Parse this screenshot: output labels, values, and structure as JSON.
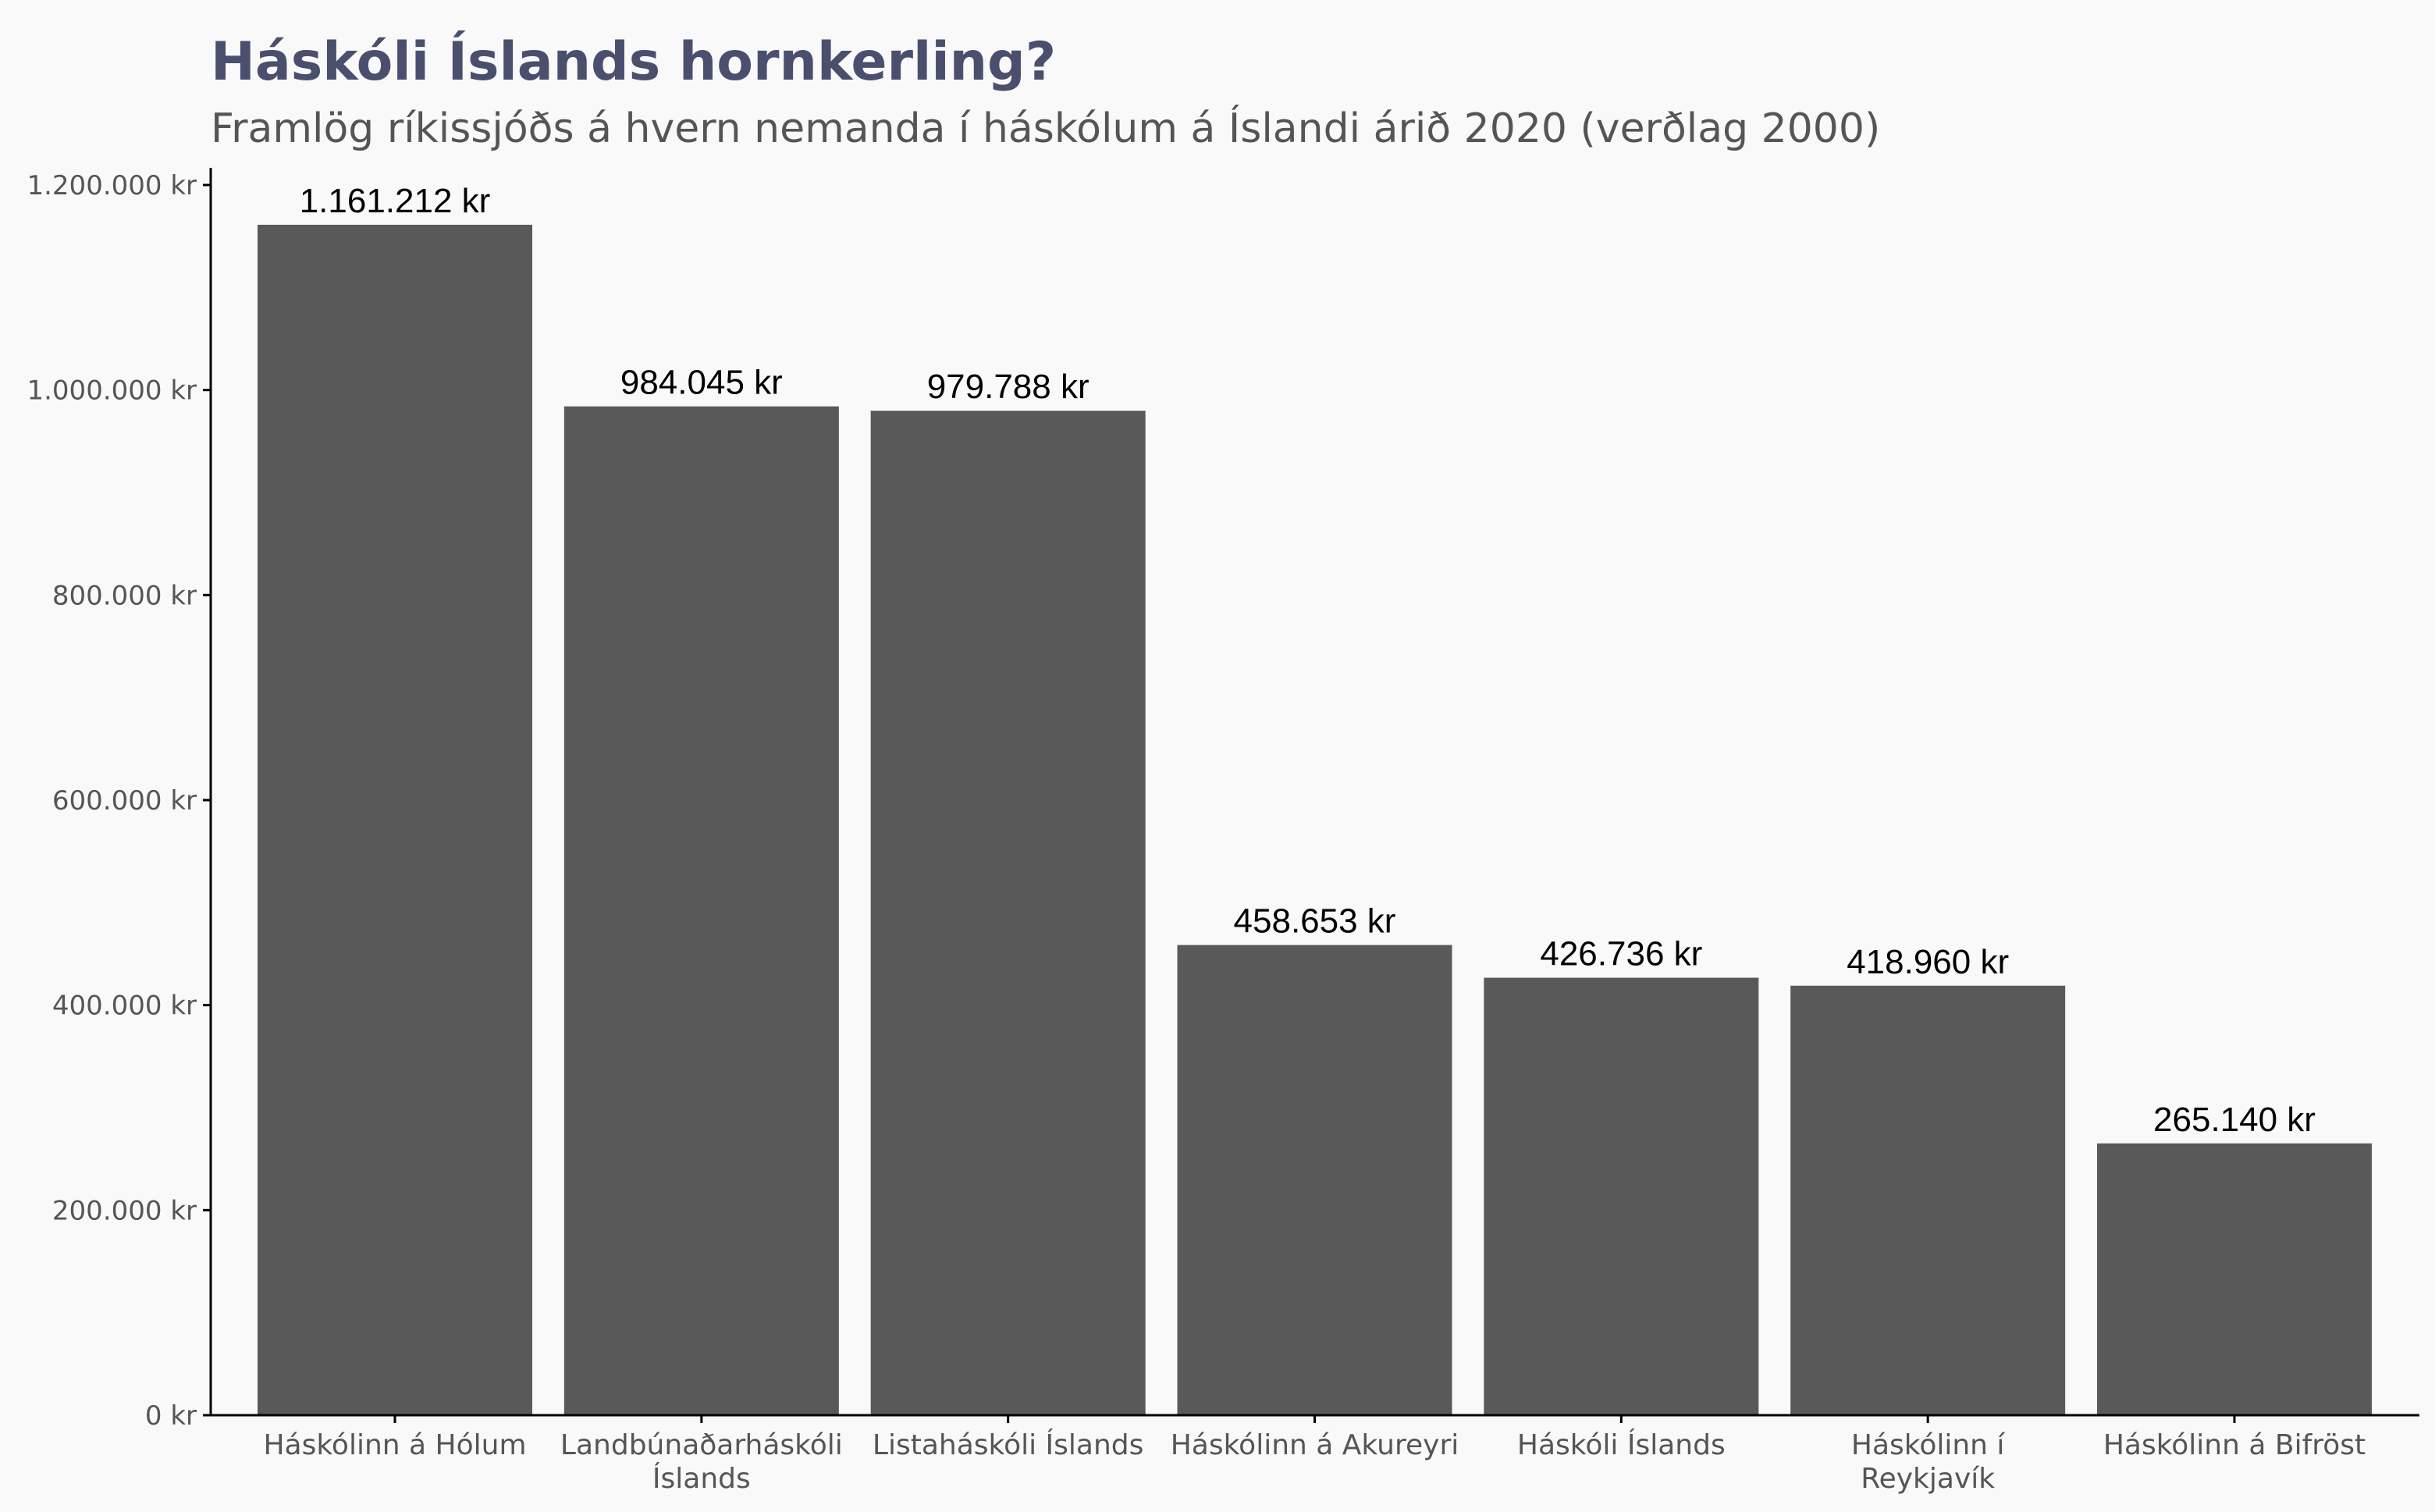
{
  "chart_data": {
    "type": "bar",
    "title": "Háskóli Íslands hornkerling?",
    "subtitle": "Framlög ríkissjóðs á hvern nemanda í háskólum á Íslandi árið 2020 (verðlag 2000)",
    "xlabel": "",
    "ylabel": "",
    "categories": [
      "Háskólinn á Hólum",
      "Landbúnaðarháskóli Íslands",
      "Listaháskóli Íslands",
      "Háskólinn á Akureyri",
      "Háskóli Íslands",
      "Háskólinn í Reykjavík",
      "Háskólinn á Bifröst"
    ],
    "category_lines": [
      [
        "Háskólinn á Hólum"
      ],
      [
        "Landbúnaðarháskóli",
        "Íslands"
      ],
      [
        "Listaháskóli Íslands"
      ],
      [
        "Háskólinn á Akureyri"
      ],
      [
        "Háskóli Íslands"
      ],
      [
        "Háskólinn í",
        "Reykjavík"
      ],
      [
        "Háskólinn á Bifröst"
      ]
    ],
    "values": [
      1161212,
      984045,
      979788,
      458653,
      426736,
      418960,
      265140
    ],
    "data_labels": [
      "1.161.212 kr",
      "984.045 kr",
      "979.788 kr",
      "458.653 kr",
      "426.736 kr",
      "418.960 kr",
      "265.140 kr"
    ],
    "ylim": [
      0,
      1200000
    ],
    "yticks": [
      0,
      200000,
      400000,
      600000,
      800000,
      1000000,
      1200000
    ],
    "ytick_labels": [
      "0 kr",
      "200.000 kr",
      "400.000 kr",
      "600.000 kr",
      "800.000 kr",
      "1.000.000 kr",
      "1.200.000 kr"
    ],
    "grid": false,
    "legend": "none",
    "colors": {
      "bar": "#595959",
      "title": "#4b4f6e",
      "subtitle": "#555555",
      "axis": "#000000",
      "tick_label": "#555555",
      "data_label": "#000000",
      "background": "#f9f9f9"
    }
  }
}
